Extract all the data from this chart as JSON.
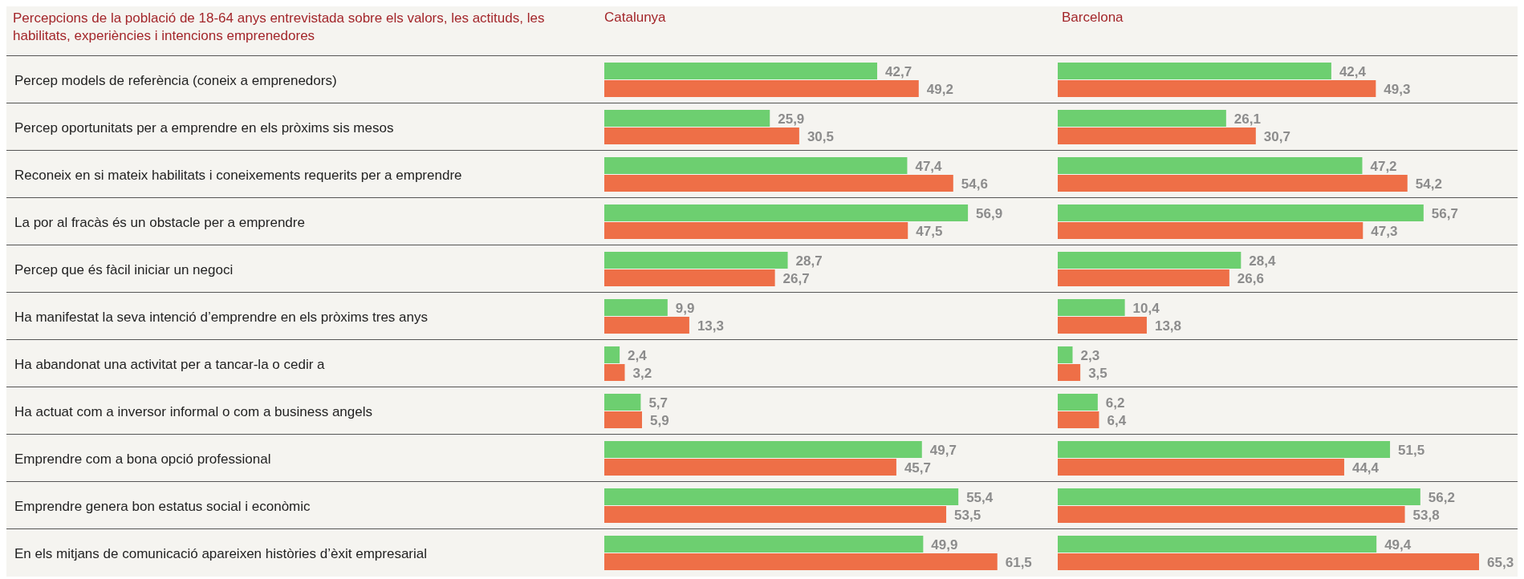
{
  "chart_data": [
    {
      "type": "bar",
      "orientation": "horizontal",
      "title": "Catalunya",
      "ylabel": "Percepcions de la població de 18-64 anys entrevistada sobre els valors, les actituds, les habilitats, experiències i intencions emprenedores",
      "tick_labels": "y",
      "categories": [
        "Percep models de referència (coneix a emprenedors)",
        "Percep oportunitats per a emprendre en els pròxims sis mesos",
        "Reconeix en si mateix habilitats i coneixements requerits per a emprendre",
        "La por al fracàs és un obstacle per a emprendre",
        "Percep que és fàcil iniciar un negoci",
        "Ha manifestat la seva intenció d’emprendre en els pròxims tres anys",
        "Ha abandonat una activitat per a tancar-la o cedir a",
        "Ha actuat com a inversor informal o com a business angels",
        "Emprendre com a bona opció professional",
        "Emprendre genera bon estatus social i econòmic",
        "En els mitjans de comunicació apareixen històries d’èxit empresarial"
      ],
      "series": [
        {
          "color": "#6dcf70",
          "values": [
            42.7,
            25.9,
            47.4,
            56.9,
            28.7,
            9.9,
            2.4,
            5.7,
            49.7,
            55.4,
            49.9
          ],
          "value_labels": [
            "42,7",
            "25,9",
            "47,4",
            "56,9",
            "28,7",
            "9,9",
            "2,4",
            "5,7",
            "49,7",
            "55,4",
            "49,9"
          ]
        },
        {
          "color": "#ee6f47",
          "values": [
            49.2,
            30.5,
            54.6,
            47.5,
            26.7,
            13.3,
            3.2,
            5.9,
            45.7,
            53.5,
            61.5
          ],
          "value_labels": [
            "49,2",
            "30,5",
            "54,6",
            "47,5",
            "26,7",
            "13,3",
            "3,2",
            "5,9",
            "45,7",
            "53,5",
            "61,5"
          ]
        }
      ]
    },
    {
      "type": "bar",
      "orientation": "horizontal",
      "title": "Barcelona",
      "tick_labels": false,
      "categories": [
        null,
        null,
        null,
        null,
        null,
        null,
        null,
        null,
        null,
        null,
        null
      ],
      "series": [
        {
          "color": "#6dcf70",
          "values": [
            42.4,
            26.1,
            47.2,
            56.7,
            28.4,
            10.4,
            2.3,
            6.2,
            51.5,
            56.2,
            49.4
          ],
          "value_labels": [
            "42,4",
            "26,1",
            "47,2",
            "56,7",
            "28,4",
            "10,4",
            "2,3",
            "6,2",
            "51,5",
            "56,2",
            "49,4"
          ]
        },
        {
          "color": "#ee6f47",
          "values": [
            49.3,
            30.7,
            54.2,
            47.3,
            26.6,
            13.8,
            3.5,
            6.4,
            44.4,
            53.8,
            65.3
          ],
          "value_labels": [
            "49,3",
            "30,7",
            "54,2",
            "47,3",
            "26,6",
            "13,8",
            "3,5",
            "6,4",
            "44,4",
            "53,8",
            "65,3"
          ]
        }
      ]
    }
  ]
}
